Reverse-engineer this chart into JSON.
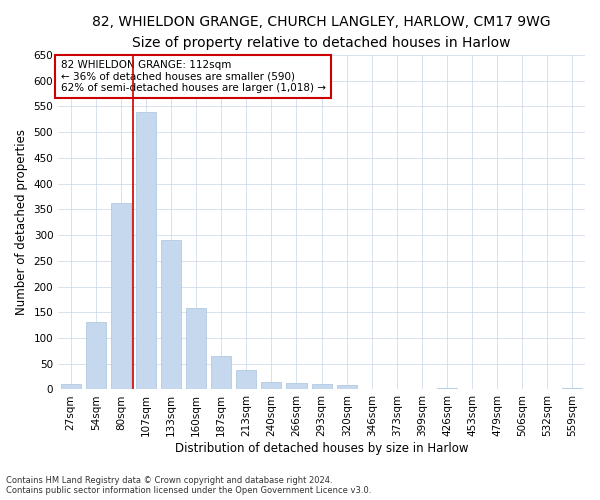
{
  "title_line1": "82, WHIELDON GRANGE, CHURCH LANGLEY, HARLOW, CM17 9WG",
  "title_line2": "Size of property relative to detached houses in Harlow",
  "xlabel": "Distribution of detached houses by size in Harlow",
  "ylabel": "Number of detached properties",
  "categories": [
    "27sqm",
    "54sqm",
    "80sqm",
    "107sqm",
    "133sqm",
    "160sqm",
    "187sqm",
    "213sqm",
    "240sqm",
    "266sqm",
    "293sqm",
    "320sqm",
    "346sqm",
    "373sqm",
    "399sqm",
    "426sqm",
    "453sqm",
    "479sqm",
    "506sqm",
    "532sqm",
    "559sqm"
  ],
  "values": [
    10,
    132,
    362,
    540,
    290,
    158,
    65,
    38,
    15,
    13,
    10,
    8,
    0,
    0,
    0,
    3,
    0,
    0,
    0,
    0,
    3
  ],
  "bar_color": "#c5d8ed",
  "bar_edge_color": "#a8c4dc",
  "vline_x_index": 3,
  "vline_color": "#cc0000",
  "annotation_text": "82 WHIELDON GRANGE: 112sqm\n← 36% of detached houses are smaller (590)\n62% of semi-detached houses are larger (1,018) →",
  "annotation_box_color": "#ffffff",
  "annotation_border_color": "#cc0000",
  "ylim": [
    0,
    650
  ],
  "yticks": [
    0,
    50,
    100,
    150,
    200,
    250,
    300,
    350,
    400,
    450,
    500,
    550,
    600,
    650
  ],
  "footnote1": "Contains HM Land Registry data © Crown copyright and database right 2024.",
  "footnote2": "Contains public sector information licensed under the Open Government Licence v3.0.",
  "bg_color": "#ffffff",
  "grid_color": "#c8d4e8",
  "title1_fontsize": 10,
  "title2_fontsize": 9,
  "tick_fontsize": 7.5,
  "label_fontsize": 8.5,
  "annot_fontsize": 7.5,
  "footnote_fontsize": 6
}
